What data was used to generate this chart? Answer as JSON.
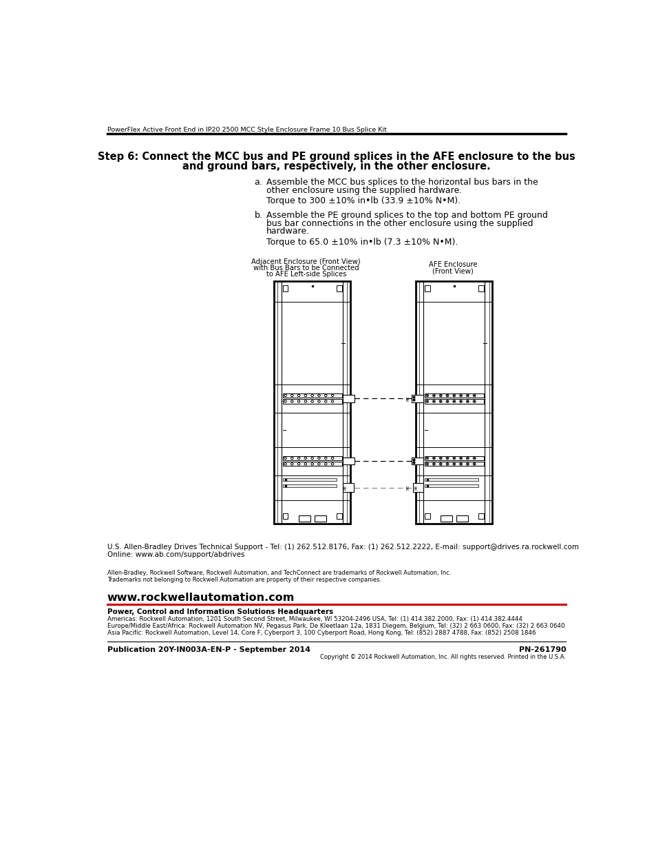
{
  "header_text": "PowerFlex Active Front End in IP20 2500 MCC Style Enclosure Frame 10 Bus Splice Kit",
  "title_line1": "Step 6: Connect the MCC bus and PE ground splices in the AFE enclosure to the bus",
  "title_line2": "and ground bars, respectively, in the other enclosure.",
  "item_a_label": "a.",
  "item_a_line1": "Assemble the MCC bus splices to the horizontal bus bars in the",
  "item_a_line2": "other enclosure using the supplied hardware.",
  "item_a_torque": "Torque to 300 ±10% in•lb (33.9 ±10% N•M).",
  "item_b_label": "b.",
  "item_b_line1": "Assemble the PE ground splices to the top and bottom PE ground",
  "item_b_line2": "bus bar connections in the other enclosure using the supplied",
  "item_b_line3": "hardware.",
  "item_b_torque": "Torque to 65.0 ±10% in•lb (7.3 ±10% N•M).",
  "fig_label_left1": "Adjacent Enclosure (Front View)",
  "fig_label_left2": "with Bus Bars to be Connected",
  "fig_label_left3": "to AFE Left-side Splices",
  "fig_label_right1": "AFE Enclosure",
  "fig_label_right2": "(Front View)",
  "support_line1": "U.S. Allen-Bradley Drives Technical Support - Tel: (1) 262.512.8176, Fax: (1) 262.512.2222, E-mail: support@drives.ra.rockwell.com",
  "support_line2": "Online: www.ab.com/support/abdrives",
  "trademark1": "Allen-Bradley, Rockwell Software, Rockwell Automation, and TechConnect are trademarks of Rockwell Automation, Inc.",
  "trademark2": "Trademarks not belonging to Rockwell Automation are property of their respective companies.",
  "website": "www.rockwellautomation.com",
  "hq_title": "Power, Control and Information Solutions Headquarters",
  "hq_americas": "Americas: Rockwell Automation, 1201 South Second Street, Milwaukee, WI 53204-2496 USA, Tel: (1) 414.382.2000, Fax: (1) 414.382.4444",
  "hq_europe": "Europe/Middle East/Africa: Rockwell Automation NV, Pegasus Park, De Kleetlaan 12a, 1831 Diegem, Belgium, Tel: (32) 2 663 0600, Fax: (32) 2 663 0640",
  "hq_asia": "Asia Pacific: Rockwell Automation, Level 14, Core F, Cyberport 3, 100 Cyberport Road, Hong Kong, Tel: (852) 2887 4788, Fax: (852) 2508 1846",
  "pub_number": "Publication 20Y-IN003A-EN-P - September 2014",
  "pn": "PN-261790",
  "copyright": "Copyright © 2014 Rockwell Automation, Inc. All rights reserved. Printed in the U.S.A.",
  "bg_color": "#ffffff",
  "text_color": "#000000",
  "line_color": "#000000",
  "red_line_color": "#cc0000"
}
